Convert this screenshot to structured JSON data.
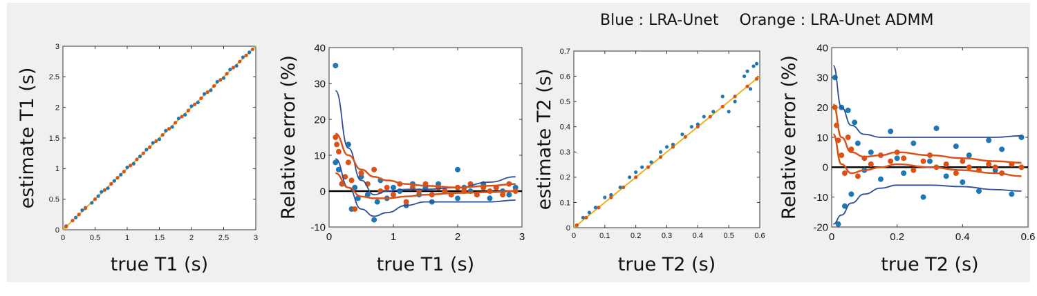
{
  "legend": {
    "blue_label": "Blue : LRA-Unet",
    "orange_label": "Orange : LRA-Unet ADMM"
  },
  "colors": {
    "blue": "#1f77b4",
    "orange": "#d95319",
    "blue_line": "#2b4d9a",
    "zero_line": "#000000",
    "identity_line": "#edb120"
  },
  "chart_data": [
    {
      "type": "scatter",
      "xlabel": "true T1 (s)",
      "ylabel": "estimate T1 (s)",
      "xlim": [
        0,
        3
      ],
      "ylim": [
        0,
        3
      ],
      "xticks": [
        "0",
        "0.5",
        "1",
        "1.5",
        "2",
        "2.5",
        "3"
      ],
      "yticks": [
        "0",
        "0.5",
        "1",
        "1.5",
        "2",
        "2.5",
        "3"
      ],
      "grid": false,
      "identity_line": true,
      "series": [
        {
          "color": "blue",
          "x": [
            0.05,
            0.2,
            0.3,
            0.35,
            0.45,
            0.55,
            0.6,
            0.7,
            0.8,
            0.9,
            1.0,
            1.1,
            1.2,
            1.3,
            1.4,
            1.5,
            1.6,
            1.7,
            1.8,
            1.9,
            2.0,
            2.1,
            2.2,
            2.3,
            2.4,
            2.5,
            2.6,
            2.7,
            2.8,
            2.9
          ],
          "y": [
            0.06,
            0.2,
            0.32,
            0.36,
            0.44,
            0.55,
            0.62,
            0.68,
            0.8,
            0.9,
            1.02,
            1.08,
            1.2,
            1.31,
            1.42,
            1.48,
            1.62,
            1.68,
            1.82,
            1.88,
            2.02,
            2.08,
            2.22,
            2.28,
            2.42,
            2.48,
            2.62,
            2.68,
            2.82,
            2.9
          ]
        },
        {
          "color": "orange",
          "x": [
            0.05,
            0.15,
            0.25,
            0.35,
            0.5,
            0.65,
            0.75,
            0.85,
            0.95,
            1.05,
            1.15,
            1.25,
            1.35,
            1.45,
            1.55,
            1.65,
            1.75,
            1.85,
            1.95,
            2.05,
            2.15,
            2.25,
            2.35,
            2.45,
            2.55,
            2.65,
            2.75,
            2.85,
            2.95
          ],
          "y": [
            0.05,
            0.15,
            0.25,
            0.35,
            0.5,
            0.65,
            0.75,
            0.85,
            0.95,
            1.05,
            1.15,
            1.25,
            1.35,
            1.45,
            1.55,
            1.65,
            1.75,
            1.85,
            1.95,
            2.05,
            2.15,
            2.25,
            2.35,
            2.45,
            2.55,
            2.65,
            2.75,
            2.85,
            2.95
          ]
        }
      ]
    },
    {
      "type": "scatter",
      "xlabel": "true T1  (s)",
      "ylabel": "Relative error (%)",
      "xlim": [
        0,
        3
      ],
      "ylim": [
        -10,
        40
      ],
      "xticks": [
        "0",
        "1",
        "2",
        "3"
      ],
      "yticks": [
        "-10",
        "0",
        "10",
        "20",
        "30",
        "40"
      ],
      "grid": false,
      "zero_line": true,
      "series": [
        {
          "color": "blue",
          "x": [
            0.1,
            0.1,
            0.15,
            0.2,
            0.3,
            0.35,
            0.4,
            0.45,
            0.5,
            0.6,
            0.7,
            0.75,
            0.8,
            0.9,
            1.0,
            1.1,
            1.2,
            1.3,
            1.4,
            1.5,
            1.6,
            1.7,
            1.8,
            1.9,
            2.0,
            2.0,
            2.1,
            2.2,
            2.3,
            2.4,
            2.5,
            2.6,
            2.7,
            2.8,
            2.9
          ],
          "y": [
            35,
            8,
            6,
            2,
            13,
            -5,
            1,
            -2,
            4,
            -1,
            -8,
            -3,
            3,
            -2,
            1,
            0,
            -4,
            2,
            -1,
            1,
            -3,
            2,
            0,
            -1,
            6,
            -2,
            1,
            0,
            -1,
            2,
            -2,
            1,
            0,
            -1,
            1
          ]
        },
        {
          "color": "orange",
          "x": [
            0.1,
            0.12,
            0.15,
            0.2,
            0.25,
            0.3,
            0.35,
            0.4,
            0.5,
            0.6,
            0.7,
            0.8,
            0.9,
            1.0,
            1.1,
            1.2,
            1.3,
            1.4,
            1.5,
            1.6,
            1.7,
            1.8,
            1.9,
            2.0,
            2.1,
            2.2,
            2.3,
            2.4,
            2.5,
            2.6,
            2.7,
            2.8,
            2.9
          ],
          "y": [
            15,
            13,
            11,
            2,
            4,
            8,
            3,
            -5,
            5,
            2,
            6,
            0,
            1,
            -1,
            2,
            -3,
            1,
            0,
            2,
            -1,
            1,
            0,
            -1,
            1,
            0,
            2,
            -1,
            1,
            0,
            1,
            -1,
            2,
            0
          ]
        }
      ],
      "fit_lines": [
        {
          "color": "blue_line",
          "x": [
            0.1,
            0.3,
            0.5,
            0.7,
            0.9,
            1.2,
            1.5,
            2.0,
            2.5,
            2.9
          ],
          "y": [
            28,
            12,
            3,
            -1,
            0,
            0.5,
            0.5,
            1,
            2.5,
            4
          ]
        },
        {
          "color": "blue_line",
          "x": [
            0.1,
            0.3,
            0.5,
            0.7,
            0.9,
            1.2,
            1.5,
            2.0,
            2.5,
            2.9
          ],
          "y": [
            9,
            1,
            -5,
            -7,
            -6,
            -4,
            -3,
            -3,
            -3,
            -2.5
          ]
        },
        {
          "color": "orange",
          "x": [
            0.1,
            0.3,
            0.5,
            0.7,
            0.9,
            1.2,
            1.5,
            2.0,
            2.5,
            2.9
          ],
          "y": [
            16,
            10,
            6,
            4,
            3,
            2,
            1.5,
            1,
            1.5,
            2
          ]
        },
        {
          "color": "orange",
          "x": [
            0.1,
            0.3,
            0.5,
            0.7,
            0.9,
            1.2,
            1.5,
            2.0,
            2.5,
            2.9
          ],
          "y": [
            5,
            1,
            -1.5,
            -2,
            -2,
            -1.5,
            -1,
            -0.5,
            -0.3,
            0
          ]
        }
      ]
    },
    {
      "type": "scatter",
      "xlabel": "true T2 (s)",
      "ylabel": "estimate T2 (s)",
      "xlim": [
        0,
        0.6
      ],
      "ylim": [
        0,
        0.7
      ],
      "xticks": [
        "0",
        "0.1",
        "0.2",
        "0.3",
        "0.4",
        "0.5",
        "0.6"
      ],
      "yticks": [
        "0",
        "0.1",
        "0.2",
        "0.3",
        "0.4",
        "0.5",
        "0.6",
        "0.7"
      ],
      "grid": false,
      "identity_line": true,
      "series": [
        {
          "color": "blue",
          "x": [
            0.01,
            0.03,
            0.05,
            0.07,
            0.1,
            0.12,
            0.15,
            0.18,
            0.2,
            0.22,
            0.25,
            0.28,
            0.3,
            0.32,
            0.35,
            0.38,
            0.4,
            0.42,
            0.45,
            0.48,
            0.5,
            0.52,
            0.55,
            0.56,
            0.57,
            0.58,
            0.59
          ],
          "y": [
            0.01,
            0.04,
            0.06,
            0.08,
            0.12,
            0.13,
            0.16,
            0.2,
            0.22,
            0.24,
            0.26,
            0.3,
            0.32,
            0.33,
            0.37,
            0.4,
            0.41,
            0.44,
            0.46,
            0.52,
            0.46,
            0.5,
            0.6,
            0.62,
            0.55,
            0.64,
            0.65
          ]
        },
        {
          "color": "orange",
          "x": [
            0.01,
            0.04,
            0.08,
            0.12,
            0.16,
            0.2,
            0.24,
            0.28,
            0.32,
            0.36,
            0.4,
            0.44,
            0.48,
            0.52,
            0.56,
            0.59
          ],
          "y": [
            0.01,
            0.04,
            0.08,
            0.12,
            0.16,
            0.2,
            0.24,
            0.28,
            0.32,
            0.36,
            0.4,
            0.44,
            0.48,
            0.52,
            0.56,
            0.59
          ]
        }
      ]
    },
    {
      "type": "scatter",
      "xlabel": "true T2 (s)",
      "ylabel": "Relative error (%)",
      "xlim": [
        0,
        0.6
      ],
      "ylim": [
        -20,
        40
      ],
      "xticks": [
        "0",
        "0.2",
        "0.4",
        "0.6"
      ],
      "yticks": [
        "-20",
        "-10",
        "0",
        "10",
        "20",
        "30",
        "40"
      ],
      "grid": false,
      "zero_line": true,
      "series": [
        {
          "color": "blue",
          "x": [
            0.01,
            0.02,
            0.03,
            0.04,
            0.05,
            0.06,
            0.07,
            0.08,
            0.1,
            0.12,
            0.15,
            0.18,
            0.2,
            0.22,
            0.25,
            0.28,
            0.3,
            0.32,
            0.35,
            0.38,
            0.4,
            0.42,
            0.45,
            0.48,
            0.5,
            0.52,
            0.55,
            0.58
          ],
          "y": [
            30,
            -19,
            20,
            -13,
            19,
            -9,
            15,
            8,
            -1,
            5,
            -4,
            12,
            3,
            -2,
            8,
            -10,
            2,
            13,
            -3,
            7,
            -5,
            4,
            -8,
            9,
            -1,
            6,
            -9,
            10
          ]
        },
        {
          "color": "orange",
          "x": [
            0.01,
            0.015,
            0.02,
            0.03,
            0.04,
            0.05,
            0.06,
            0.08,
            0.1,
            0.12,
            0.15,
            0.18,
            0.2,
            0.22,
            0.25,
            0.28,
            0.3,
            0.32,
            0.35,
            0.38,
            0.4,
            0.42,
            0.45,
            0.48,
            0.5,
            0.52,
            0.55,
            0.58
          ],
          "y": [
            20,
            14,
            9,
            4,
            -2,
            10,
            6,
            -3,
            3,
            1,
            4,
            2,
            5,
            3,
            -1,
            2,
            4,
            0,
            1,
            -2,
            2,
            0,
            -1,
            1,
            0,
            -2,
            1,
            0
          ]
        }
      ],
      "fit_lines": [
        {
          "color": "blue_line",
          "x": [
            0.005,
            0.03,
            0.06,
            0.1,
            0.15,
            0.2,
            0.3,
            0.4,
            0.5,
            0.58
          ],
          "y": [
            34,
            20,
            14,
            11,
            10,
            10,
            10,
            10,
            10,
            10.5
          ]
        },
        {
          "color": "blue_line",
          "x": [
            0.005,
            0.03,
            0.06,
            0.1,
            0.15,
            0.2,
            0.3,
            0.4,
            0.5,
            0.58
          ],
          "y": [
            -19,
            -16,
            -12,
            -9,
            -7,
            -6,
            -6,
            -6.5,
            -7.5,
            -8
          ]
        },
        {
          "color": "orange",
          "x": [
            0.005,
            0.03,
            0.06,
            0.1,
            0.15,
            0.2,
            0.3,
            0.4,
            0.5,
            0.58
          ],
          "y": [
            21,
            10,
            5,
            3.5,
            4,
            5,
            4,
            3,
            2,
            1.5
          ]
        },
        {
          "color": "orange",
          "x": [
            0.005,
            0.03,
            0.06,
            0.1,
            0.15,
            0.2,
            0.3,
            0.4,
            0.5,
            0.58
          ],
          "y": [
            11,
            1,
            -2,
            -1,
            0,
            1,
            0,
            -1,
            -2,
            -3
          ]
        }
      ]
    }
  ]
}
